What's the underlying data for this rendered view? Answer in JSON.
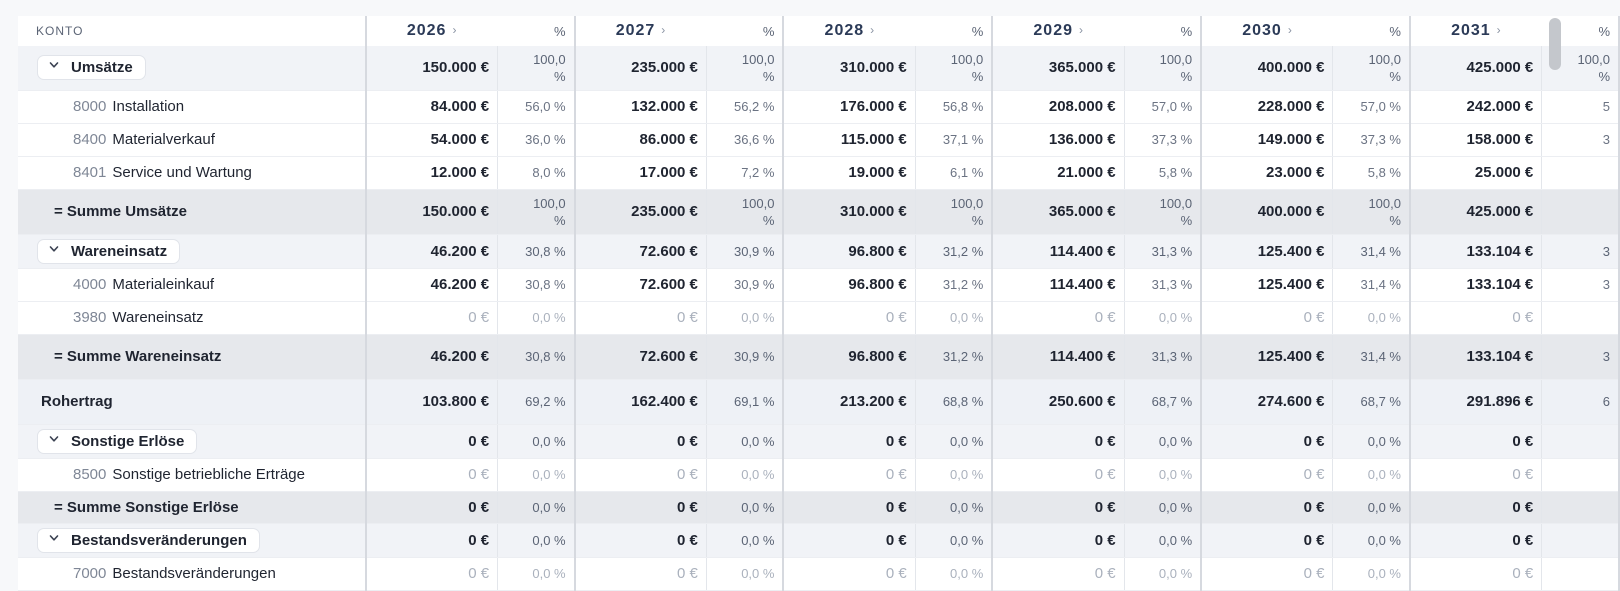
{
  "header": {
    "konto_label": "KONTO",
    "pct_label": "%",
    "years": [
      "2026",
      "2027",
      "2028",
      "2029",
      "2030",
      "2031"
    ]
  },
  "rows": {
    "umsaetze": {
      "label": "Umsätze",
      "values": [
        "150.000 €",
        "235.000 €",
        "310.000 €",
        "365.000 €",
        "400.000 €",
        "425.000 €"
      ],
      "pcts": [
        "100,0 %",
        "100,0 %",
        "100,0 %",
        "100,0 %",
        "100,0 %",
        "100,0 %"
      ]
    },
    "acct_8000": {
      "number": "8000",
      "name": "Installation",
      "values": [
        "84.000 €",
        "132.000 €",
        "176.000 €",
        "208.000 €",
        "228.000 €",
        "242.000 €"
      ],
      "pcts": [
        "56,0 %",
        "56,2 %",
        "56,8 %",
        "57,0 %",
        "57,0 %",
        "5"
      ]
    },
    "acct_8400": {
      "number": "8400",
      "name": "Materialverkauf",
      "values": [
        "54.000 €",
        "86.000 €",
        "115.000 €",
        "136.000 €",
        "149.000 €",
        "158.000 €"
      ],
      "pcts": [
        "36,0 %",
        "36,6 %",
        "37,1 %",
        "37,3 %",
        "37,3 %",
        "3"
      ]
    },
    "acct_8401": {
      "number": "8401",
      "name": "Service und Wartung",
      "values": [
        "12.000 €",
        "17.000 €",
        "19.000 €",
        "21.000 €",
        "23.000 €",
        "25.000 €"
      ],
      "pcts": [
        "8,0 %",
        "7,2 %",
        "6,1 %",
        "5,8 %",
        "5,8 %",
        ""
      ]
    },
    "summe_umsaetze": {
      "label": "= Summe Umsätze",
      "values": [
        "150.000 €",
        "235.000 €",
        "310.000 €",
        "365.000 €",
        "400.000 €",
        "425.000 €"
      ],
      "pcts": [
        "100,0 %",
        "100,0 %",
        "100,0 %",
        "100,0 %",
        "100,0 %",
        ""
      ]
    },
    "wareneinsatz": {
      "label": "Wareneinsatz",
      "values": [
        "46.200 €",
        "72.600 €",
        "96.800 €",
        "114.400 €",
        "125.400 €",
        "133.104 €"
      ],
      "pcts": [
        "30,8 %",
        "30,9 %",
        "31,2 %",
        "31,3 %",
        "31,4 %",
        "3"
      ]
    },
    "acct_4000": {
      "number": "4000",
      "name": "Materialeinkauf",
      "values": [
        "46.200 €",
        "72.600 €",
        "96.800 €",
        "114.400 €",
        "125.400 €",
        "133.104 €"
      ],
      "pcts": [
        "30,8 %",
        "30,9 %",
        "31,2 %",
        "31,3 %",
        "31,4 %",
        "3"
      ]
    },
    "acct_3980": {
      "number": "3980",
      "name": "Wareneinsatz",
      "values": [
        "0 €",
        "0 €",
        "0 €",
        "0 €",
        "0 €",
        "0 €"
      ],
      "pcts": [
        "0,0 %",
        "0,0 %",
        "0,0 %",
        "0,0 %",
        "0,0 %",
        ""
      ]
    },
    "summe_wareneinsatz": {
      "label": "= Summe Wareneinsatz",
      "values": [
        "46.200 €",
        "72.600 €",
        "96.800 €",
        "114.400 €",
        "125.400 €",
        "133.104 €"
      ],
      "pcts": [
        "30,8 %",
        "30,9 %",
        "31,2 %",
        "31,3 %",
        "31,4 %",
        "3"
      ]
    },
    "rohertrag": {
      "label": "Rohertrag",
      "values": [
        "103.800 €",
        "162.400 €",
        "213.200 €",
        "250.600 €",
        "274.600 €",
        "291.896 €"
      ],
      "pcts": [
        "69,2 %",
        "69,1 %",
        "68,8 %",
        "68,7 %",
        "68,7 %",
        "6"
      ]
    },
    "sonstige_erloese": {
      "label": "Sonstige Erlöse",
      "values": [
        "0 €",
        "0 €",
        "0 €",
        "0 €",
        "0 €",
        "0 €"
      ],
      "pcts": [
        "0,0 %",
        "0,0 %",
        "0,0 %",
        "0,0 %",
        "0,0 %",
        ""
      ]
    },
    "acct_8500": {
      "number": "8500",
      "name": "Sonstige betriebliche Erträge",
      "values": [
        "0 €",
        "0 €",
        "0 €",
        "0 €",
        "0 €",
        "0 €"
      ],
      "pcts": [
        "0,0 %",
        "0,0 %",
        "0,0 %",
        "0,0 %",
        "0,0 %",
        ""
      ]
    },
    "summe_sonstige": {
      "label": "= Summe Sonstige Erlöse",
      "values": [
        "0 €",
        "0 €",
        "0 €",
        "0 €",
        "0 €",
        "0 €"
      ],
      "pcts": [
        "0,0 %",
        "0,0 %",
        "0,0 %",
        "0,0 %",
        "0,0 %",
        ""
      ]
    },
    "bestandsveraenderungen": {
      "label": "Bestandsveränderungen",
      "values": [
        "0 €",
        "0 €",
        "0 €",
        "0 €",
        "0 €",
        "0 €"
      ],
      "pcts": [
        "0,0 %",
        "0,0 %",
        "0,0 %",
        "0,0 %",
        "0,0 %",
        ""
      ]
    },
    "acct_7000": {
      "number": "7000",
      "name": "Bestandsveränderungen",
      "values": [
        "0 €",
        "0 €",
        "0 €",
        "0 €",
        "0 €",
        "0 €"
      ],
      "pcts": [
        "0,0 %",
        "0,0 %",
        "0,0 %",
        "0,0 %",
        "0,0 %",
        ""
      ]
    }
  },
  "colors": {
    "group_bg": "#f1f3f7",
    "sum_bg": "#e6e8ec",
    "muted_text": "#aab1bd",
    "year_text": "#2b3a57"
  }
}
